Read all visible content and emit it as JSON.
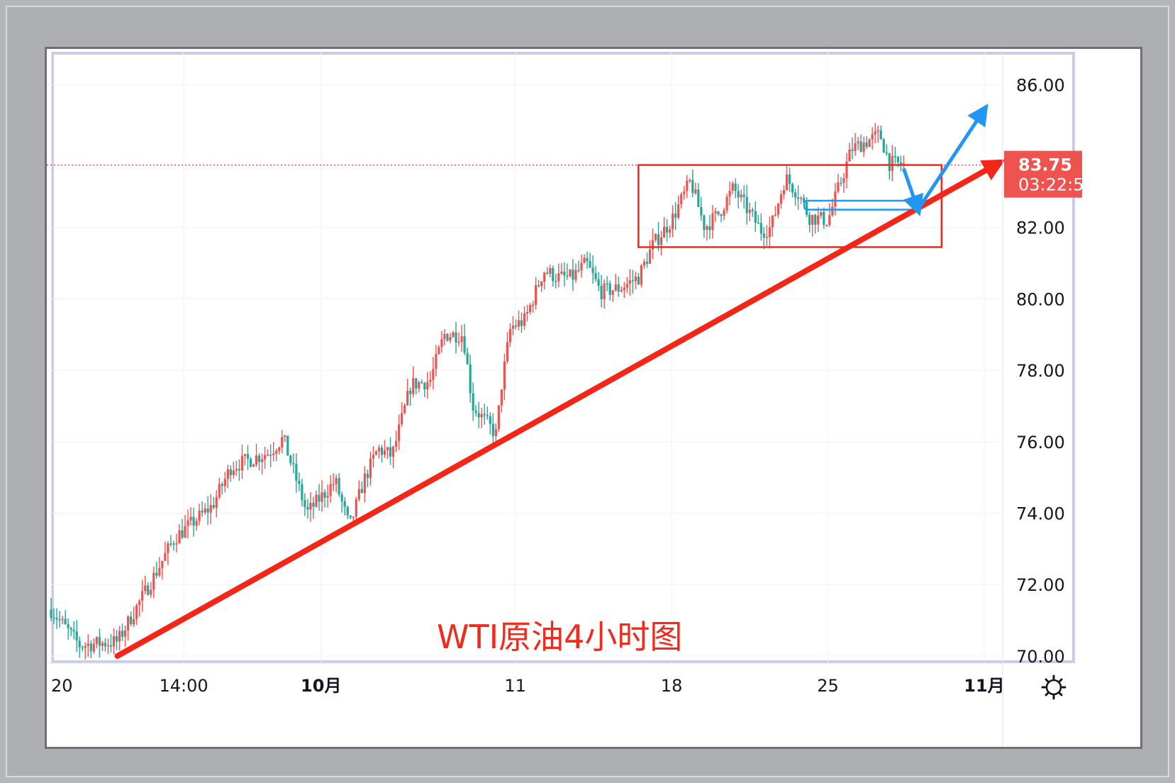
{
  "chart_data": {
    "type": "candlestick",
    "title": "WTI原油4小时图",
    "ylim": [
      69.8,
      87.0
    ],
    "y_ticks": [
      "86.00",
      "82.00",
      "80.00",
      "78.00",
      "76.00",
      "74.00",
      "72.00",
      "70.00"
    ],
    "x_labels": [
      {
        "text": "20",
        "bold": false,
        "pos": 0.0
      },
      {
        "text": "14:00",
        "bold": false,
        "pos": 0.14
      },
      {
        "text": "10月",
        "bold": true,
        "pos": 0.285
      },
      {
        "text": "11",
        "bold": false,
        "pos": 0.49
      },
      {
        "text": "18",
        "bold": false,
        "pos": 0.655
      },
      {
        "text": "25",
        "bold": false,
        "pos": 0.82
      },
      {
        "text": "11月",
        "bold": true,
        "pos": 0.985
      }
    ],
    "current_price": {
      "value": "83.75",
      "countdown": "03:22:5",
      "price": 83.75
    },
    "range_box": {
      "x_start": 0.62,
      "x_end": 0.94,
      "y_top": 83.75,
      "y_bottom": 81.45
    },
    "support_zone": {
      "x_start": 0.795,
      "x_end": 0.915,
      "y_top": 82.75,
      "y_bottom": 82.5
    },
    "trendline": {
      "x_start": 0.07,
      "y_start": 70.0,
      "x_end": 1.0,
      "y_end": 83.8
    },
    "projection": [
      {
        "x": 0.9,
        "y": 83.65
      },
      {
        "x": 0.915,
        "y": 82.5
      },
      {
        "x": 0.985,
        "y": 85.3
      }
    ],
    "anchors": [
      [
        0.0,
        71.3
      ],
      [
        0.03,
        70.3
      ],
      [
        0.07,
        70.4
      ],
      [
        0.11,
        72.3
      ],
      [
        0.13,
        73.3
      ],
      [
        0.17,
        74.2
      ],
      [
        0.19,
        75.3
      ],
      [
        0.23,
        75.7
      ],
      [
        0.245,
        76.1
      ],
      [
        0.27,
        74.0
      ],
      [
        0.3,
        74.9
      ],
      [
        0.315,
        73.6
      ],
      [
        0.33,
        74.9
      ],
      [
        0.345,
        75.8
      ],
      [
        0.36,
        75.6
      ],
      [
        0.38,
        77.6
      ],
      [
        0.4,
        77.7
      ],
      [
        0.415,
        79.0
      ],
      [
        0.435,
        79.0
      ],
      [
        0.445,
        77.0
      ],
      [
        0.47,
        76.2
      ],
      [
        0.475,
        77.5
      ],
      [
        0.485,
        79.2
      ],
      [
        0.5,
        79.4
      ],
      [
        0.52,
        80.8
      ],
      [
        0.535,
        80.6
      ],
      [
        0.55,
        80.6
      ],
      [
        0.565,
        81.0
      ],
      [
        0.58,
        80.2
      ],
      [
        0.6,
        80.3
      ],
      [
        0.62,
        80.6
      ],
      [
        0.635,
        81.5
      ],
      [
        0.655,
        82.2
      ],
      [
        0.675,
        83.3
      ],
      [
        0.69,
        82.0
      ],
      [
        0.705,
        82.4
      ],
      [
        0.72,
        83.1
      ],
      [
        0.735,
        82.5
      ],
      [
        0.75,
        81.9
      ],
      [
        0.76,
        82.0
      ],
      [
        0.775,
        83.4
      ],
      [
        0.79,
        82.9
      ],
      [
        0.8,
        82.3
      ],
      [
        0.82,
        82.2
      ],
      [
        0.83,
        83.0
      ],
      [
        0.845,
        84.2
      ],
      [
        0.86,
        84.4
      ],
      [
        0.875,
        84.6
      ],
      [
        0.885,
        83.8
      ],
      [
        0.9,
        83.75
      ]
    ]
  },
  "colors": {
    "up": "#ef5350",
    "down": "#26a69a",
    "annotation_red": "#f42617",
    "projection_blue": "#2196f3",
    "grid": "#f0f3fa"
  },
  "icons": {
    "settings": "gear-icon"
  }
}
